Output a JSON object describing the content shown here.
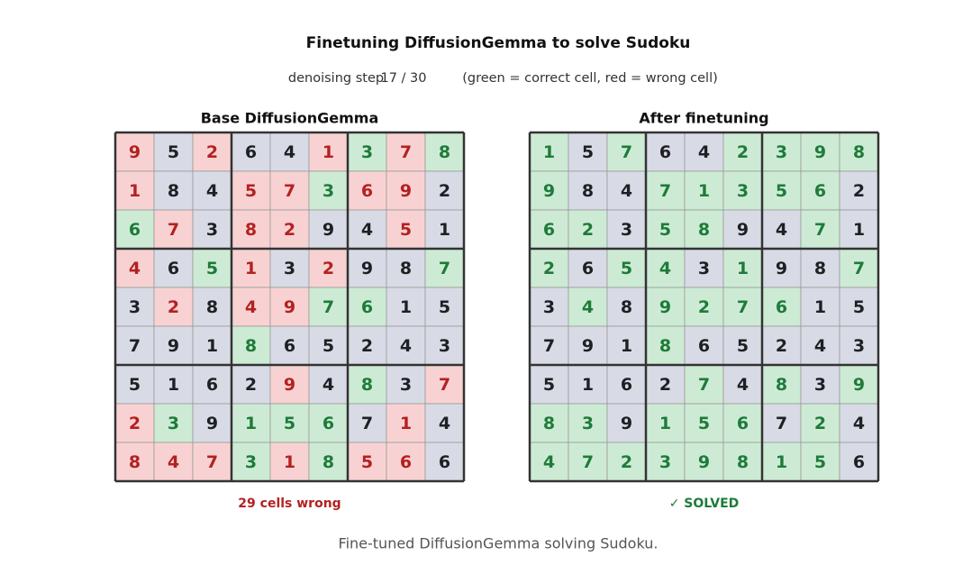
{
  "header": {
    "title": "Finetuning DiffusionGemma to solve Sudoku",
    "step_label": "denoising step",
    "step": "17 / 30",
    "legend": "(green = correct cell,  red = wrong cell)"
  },
  "colors": {
    "given": {
      "fill": "#d8dbe5",
      "text": "#1f1f24"
    },
    "correct": {
      "fill": "#cdebd4",
      "text": "#1e7b3a"
    },
    "wrong": {
      "fill": "#f8d2d2",
      "text": "#b42121"
    }
  },
  "boards": [
    {
      "title": "Base DiffusionGemma",
      "status": "29 cells wrong",
      "status_color": "#b42121",
      "rows": [
        [
          9,
          5,
          2,
          6,
          4,
          1,
          3,
          7,
          8
        ],
        [
          1,
          8,
          4,
          5,
          7,
          3,
          6,
          9,
          2
        ],
        [
          6,
          7,
          3,
          8,
          2,
          9,
          4,
          5,
          1
        ],
        [
          4,
          6,
          5,
          1,
          3,
          2,
          9,
          8,
          7
        ],
        [
          3,
          2,
          8,
          4,
          9,
          7,
          6,
          1,
          5
        ],
        [
          7,
          9,
          1,
          8,
          6,
          5,
          2,
          4,
          3
        ],
        [
          5,
          1,
          6,
          2,
          9,
          4,
          8,
          3,
          7
        ],
        [
          2,
          3,
          9,
          1,
          5,
          6,
          7,
          1,
          4
        ],
        [
          8,
          4,
          7,
          3,
          1,
          8,
          5,
          6,
          6
        ]
      ],
      "states": [
        [
          "wrong",
          "given",
          "wrong",
          "given",
          "given",
          "wrong",
          "correct",
          "wrong",
          "correct"
        ],
        [
          "wrong",
          "given",
          "given",
          "wrong",
          "wrong",
          "correct",
          "wrong",
          "wrong",
          "given"
        ],
        [
          "correct",
          "wrong",
          "given",
          "wrong",
          "wrong",
          "given",
          "given",
          "wrong",
          "given"
        ],
        [
          "wrong",
          "given",
          "correct",
          "wrong",
          "given",
          "wrong",
          "given",
          "given",
          "correct"
        ],
        [
          "given",
          "wrong",
          "given",
          "wrong",
          "wrong",
          "correct",
          "correct",
          "given",
          "given"
        ],
        [
          "given",
          "given",
          "given",
          "correct",
          "given",
          "given",
          "given",
          "given",
          "given"
        ],
        [
          "given",
          "given",
          "given",
          "given",
          "wrong",
          "given",
          "correct",
          "given",
          "wrong"
        ],
        [
          "wrong",
          "correct",
          "given",
          "correct",
          "correct",
          "correct",
          "given",
          "wrong",
          "given"
        ],
        [
          "wrong",
          "wrong",
          "wrong",
          "correct",
          "wrong",
          "correct",
          "wrong",
          "wrong",
          "given"
        ]
      ]
    },
    {
      "title": "After finetuning",
      "status": "✓ SOLVED",
      "status_color": "#1e7b3a",
      "rows": [
        [
          1,
          5,
          7,
          6,
          4,
          2,
          3,
          9,
          8
        ],
        [
          9,
          8,
          4,
          7,
          1,
          3,
          5,
          6,
          2
        ],
        [
          6,
          2,
          3,
          5,
          8,
          9,
          4,
          7,
          1
        ],
        [
          2,
          6,
          5,
          4,
          3,
          1,
          9,
          8,
          7
        ],
        [
          3,
          4,
          8,
          9,
          2,
          7,
          6,
          1,
          5
        ],
        [
          7,
          9,
          1,
          8,
          6,
          5,
          2,
          4,
          3
        ],
        [
          5,
          1,
          6,
          2,
          7,
          4,
          8,
          3,
          9
        ],
        [
          8,
          3,
          9,
          1,
          5,
          6,
          7,
          2,
          4
        ],
        [
          4,
          7,
          2,
          3,
          9,
          8,
          1,
          5,
          6
        ]
      ],
      "states": [
        [
          "correct",
          "given",
          "correct",
          "given",
          "given",
          "correct",
          "correct",
          "correct",
          "correct"
        ],
        [
          "correct",
          "given",
          "given",
          "correct",
          "correct",
          "correct",
          "correct",
          "correct",
          "given"
        ],
        [
          "correct",
          "correct",
          "given",
          "correct",
          "correct",
          "given",
          "given",
          "correct",
          "given"
        ],
        [
          "correct",
          "given",
          "correct",
          "correct",
          "given",
          "correct",
          "given",
          "given",
          "correct"
        ],
        [
          "given",
          "correct",
          "given",
          "correct",
          "correct",
          "correct",
          "correct",
          "given",
          "given"
        ],
        [
          "given",
          "given",
          "given",
          "correct",
          "given",
          "given",
          "given",
          "given",
          "given"
        ],
        [
          "given",
          "given",
          "given",
          "given",
          "correct",
          "given",
          "correct",
          "given",
          "correct"
        ],
        [
          "correct",
          "correct",
          "given",
          "correct",
          "correct",
          "correct",
          "given",
          "correct",
          "given"
        ],
        [
          "correct",
          "correct",
          "correct",
          "correct",
          "correct",
          "correct",
          "correct",
          "correct",
          "given"
        ]
      ]
    }
  ],
  "caption": "Fine-tuned DiffusionGemma solving Sudoku."
}
